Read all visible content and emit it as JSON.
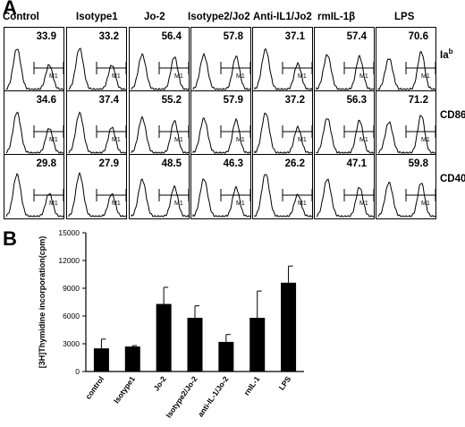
{
  "panel_a": {
    "letter": "A",
    "columns": [
      "Control",
      "Isotype1",
      "Jo-2",
      "Isotype2/Jo2",
      "Anti-IL1/Jo2",
      "rmIL-1β",
      "LPS"
    ],
    "rows": [
      {
        "marker": "Ia",
        "superscript": "b",
        "values": [
          "33.9",
          "33.2",
          "56.4",
          "57.8",
          "37.1",
          "57.4",
          "70.6"
        ]
      },
      {
        "marker": "CD86",
        "superscript": "",
        "values": [
          "34.6",
          "37.4",
          "55.2",
          "57.9",
          "37.2",
          "56.3",
          "71.2"
        ]
      },
      {
        "marker": "CD40",
        "superscript": "",
        "values": [
          "29.8",
          "27.9",
          "48.5",
          "46.3",
          "26.2",
          "47.1",
          "59.8"
        ]
      }
    ],
    "gate_label": "M1"
  },
  "panel_b": {
    "letter": "B"
  },
  "chart_data": {
    "type": "bar",
    "categories": [
      "control",
      "Isotype1",
      "Jo-2",
      "Isotype2/Jo-2",
      "anti-IL-1/Jo-2",
      "rnIL-1",
      "LPS"
    ],
    "values": [
      2500,
      2700,
      7300,
      5800,
      3200,
      5800,
      9600
    ],
    "errors": [
      1000,
      100,
      1800,
      1300,
      800,
      2900,
      1800
    ],
    "title": "",
    "xlabel": "",
    "ylabel": "[3H]Thymidine incorporation(cpm)",
    "ylim": [
      0,
      15000
    ],
    "yticks": [
      0,
      3000,
      6000,
      9000,
      12000,
      15000
    ],
    "grid": false,
    "bar_color": "#000000"
  }
}
